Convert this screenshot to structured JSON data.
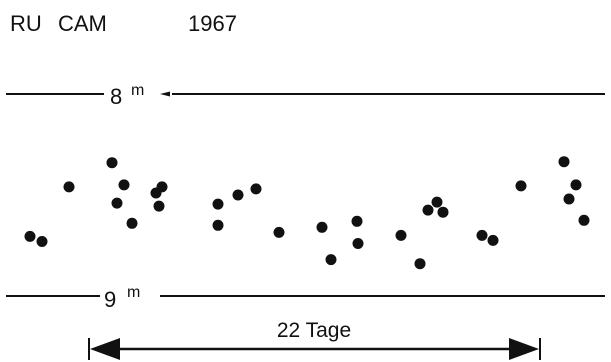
{
  "header": {
    "star": "RU",
    "constellation": "CAM",
    "year": "1967"
  },
  "chart_data": {
    "type": "scatter",
    "title": "RU CAM 1967",
    "xlabel": "",
    "ylabel": "",
    "y_unit": "m",
    "y_inverted": true,
    "ylim": [
      8.0,
      9.0
    ],
    "reference_lines": [
      {
        "value": 8,
        "label": "8",
        "unit": "m"
      },
      {
        "value": 9,
        "label": "9",
        "unit": "m"
      }
    ],
    "points": [
      {
        "x": 30,
        "y": 8.705
      },
      {
        "x": 42,
        "y": 8.73
      },
      {
        "x": 69,
        "y": 8.46
      },
      {
        "x": 112,
        "y": 8.34
      },
      {
        "x": 117,
        "y": 8.54
      },
      {
        "x": 124,
        "y": 8.45
      },
      {
        "x": 132,
        "y": 8.64
      },
      {
        "x": 156,
        "y": 8.49
      },
      {
        "x": 159,
        "y": 8.555
      },
      {
        "x": 162,
        "y": 8.46
      },
      {
        "x": 218,
        "y": 8.545
      },
      {
        "x": 218,
        "y": 8.65
      },
      {
        "x": 238,
        "y": 8.5
      },
      {
        "x": 256,
        "y": 8.47
      },
      {
        "x": 279,
        "y": 8.685
      },
      {
        "x": 322,
        "y": 8.66
      },
      {
        "x": 331,
        "y": 8.82
      },
      {
        "x": 357,
        "y": 8.63
      },
      {
        "x": 358,
        "y": 8.74
      },
      {
        "x": 401,
        "y": 8.7
      },
      {
        "x": 420,
        "y": 8.84
      },
      {
        "x": 428,
        "y": 8.575
      },
      {
        "x": 437,
        "y": 8.535
      },
      {
        "x": 443,
        "y": 8.585
      },
      {
        "x": 482,
        "y": 8.7
      },
      {
        "x": 493,
        "y": 8.725
      },
      {
        "x": 521,
        "y": 8.455
      },
      {
        "x": 564,
        "y": 8.335
      },
      {
        "x": 569,
        "y": 8.52
      },
      {
        "x": 576,
        "y": 8.45
      },
      {
        "x": 584,
        "y": 8.625
      }
    ],
    "scale_bar": {
      "label": "22 Tage"
    },
    "grid": false,
    "legend": "none"
  }
}
